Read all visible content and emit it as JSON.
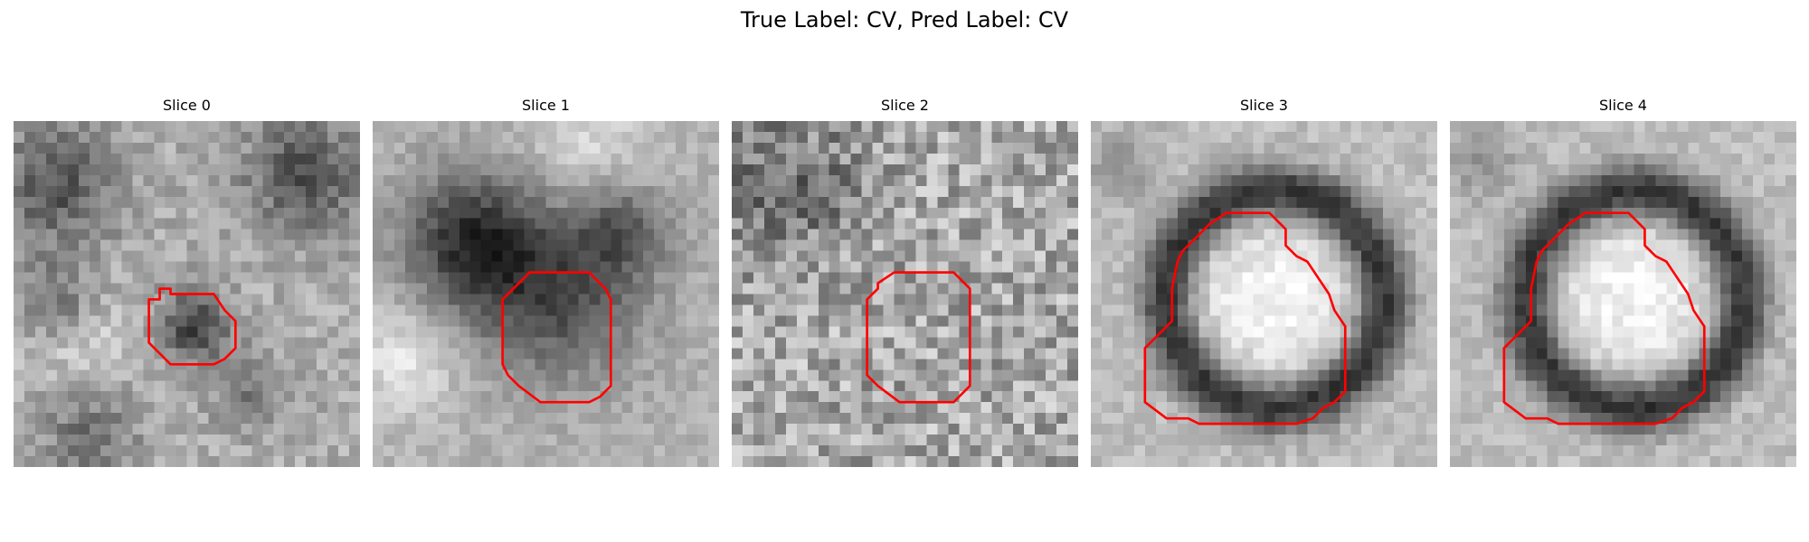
{
  "figure": {
    "title": "True Label: CV, Pred Label: CV"
  },
  "panels": [
    {
      "title": "Slice 0",
      "grid_size": 32,
      "pattern": "small-dark-blob",
      "seed": 11,
      "contour": [
        [
          12.5,
          16.5
        ],
        [
          13.5,
          16.5
        ],
        [
          13.5,
          15.5
        ],
        [
          14.5,
          15.5
        ],
        [
          14.5,
          16
        ],
        [
          18.5,
          16
        ],
        [
          19.5,
          17.5
        ],
        [
          20.5,
          18.5
        ],
        [
          20.5,
          21
        ],
        [
          19.5,
          22
        ],
        [
          18.5,
          22.5
        ],
        [
          14.5,
          22.5
        ],
        [
          13.5,
          21.5
        ],
        [
          12.5,
          20.5
        ]
      ]
    },
    {
      "title": "Slice 1",
      "grid_size": 32,
      "pattern": "large-dark-mass",
      "seed": 23,
      "contour": [
        [
          12,
          20.5
        ],
        [
          12,
          16.5
        ],
        [
          13.5,
          15
        ],
        [
          14.5,
          14
        ],
        [
          20,
          14
        ],
        [
          21.5,
          15.5
        ],
        [
          22,
          16.5
        ],
        [
          22,
          24.5
        ],
        [
          21,
          25.5
        ],
        [
          20,
          26
        ],
        [
          15.5,
          26
        ],
        [
          13.5,
          24.5
        ],
        [
          12.5,
          23.5
        ],
        [
          12,
          22.5
        ]
      ]
    },
    {
      "title": "Slice 2",
      "grid_size": 32,
      "pattern": "noise",
      "seed": 37,
      "contour": [
        [
          12.5,
          20
        ],
        [
          12.5,
          16.5
        ],
        [
          13.5,
          15.5
        ],
        [
          13.5,
          15
        ],
        [
          15,
          14
        ],
        [
          20.5,
          14
        ],
        [
          22,
          15.5
        ],
        [
          22,
          24.5
        ],
        [
          21,
          25.5
        ],
        [
          20.5,
          26
        ],
        [
          15.5,
          26
        ],
        [
          13.5,
          24.5
        ],
        [
          12.5,
          23.5
        ]
      ]
    },
    {
      "title": "Slice 3",
      "grid_size": 32,
      "pattern": "bright-ring",
      "seed": 41,
      "contour": [
        [
          12.5,
          8.5
        ],
        [
          16.5,
          8.5
        ],
        [
          18,
          10
        ],
        [
          18,
          11.5
        ],
        [
          19,
          12.5
        ],
        [
          20,
          13
        ],
        [
          21,
          14.5
        ],
        [
          22,
          16
        ],
        [
          22.5,
          17.5
        ],
        [
          23.5,
          19
        ],
        [
          23.5,
          25
        ],
        [
          22.5,
          26
        ],
        [
          21.5,
          26.5
        ],
        [
          20.5,
          27.5
        ],
        [
          19,
          28
        ],
        [
          10,
          28
        ],
        [
          9,
          27.5
        ],
        [
          7,
          27.5
        ],
        [
          5,
          26
        ],
        [
          5,
          21
        ],
        [
          6.5,
          19.5
        ],
        [
          7.5,
          18.5
        ],
        [
          7.5,
          15.5
        ],
        [
          8,
          13
        ],
        [
          8.5,
          12
        ],
        [
          10.5,
          10
        ],
        [
          11,
          9.5
        ]
      ]
    },
    {
      "title": "Slice 4",
      "grid_size": 32,
      "pattern": "bright-ring",
      "seed": 43,
      "contour": [
        [
          12.5,
          8.5
        ],
        [
          16.5,
          8.5
        ],
        [
          18,
          10
        ],
        [
          18,
          11.5
        ],
        [
          19,
          12.5
        ],
        [
          20,
          13
        ],
        [
          21,
          14.5
        ],
        [
          22,
          16
        ],
        [
          22.5,
          17.5
        ],
        [
          23.5,
          19
        ],
        [
          23.5,
          25
        ],
        [
          22.5,
          26
        ],
        [
          21.5,
          26.5
        ],
        [
          20.5,
          27.5
        ],
        [
          19,
          28
        ],
        [
          10,
          28
        ],
        [
          9,
          27.5
        ],
        [
          7,
          27.5
        ],
        [
          5,
          26
        ],
        [
          5,
          21
        ],
        [
          6.5,
          19.5
        ],
        [
          7.5,
          18.5
        ],
        [
          7.5,
          15.5
        ],
        [
          8,
          13
        ],
        [
          8.5,
          12
        ],
        [
          10.5,
          10
        ],
        [
          11,
          9.5
        ]
      ]
    }
  ],
  "colors": {
    "contour": "#ff0000"
  }
}
